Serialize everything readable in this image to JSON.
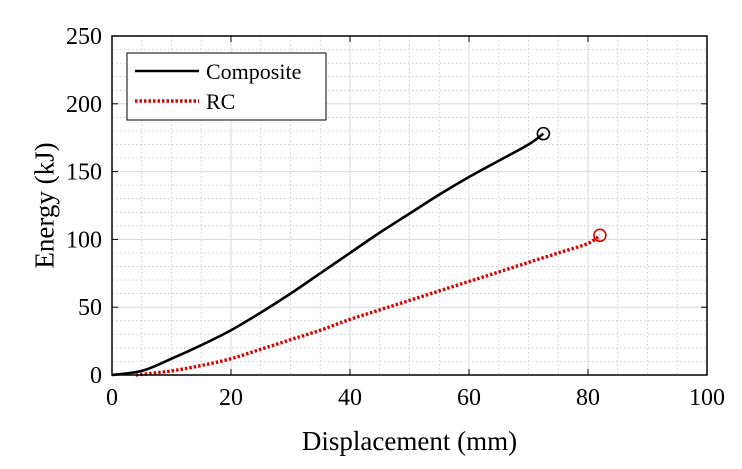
{
  "chart_data": {
    "type": "line",
    "title": "",
    "xlabel": "Displacement (mm)",
    "ylabel": "Energy (kJ)",
    "xlim": [
      0,
      100
    ],
    "ylim": [
      0,
      250
    ],
    "xticks": [
      0,
      20,
      40,
      60,
      80,
      100
    ],
    "yticks": [
      0,
      50,
      100,
      150,
      200,
      250
    ],
    "grid": true,
    "minor_grid": true,
    "legend_position": "top-left",
    "series": [
      {
        "name": "Composite",
        "color": "#000000",
        "style": "solid",
        "end_marker": "circle",
        "x": [
          0,
          5,
          10,
          15,
          20,
          25,
          30,
          35,
          40,
          45,
          50,
          55,
          60,
          65,
          70,
          72.5
        ],
        "y": [
          0,
          3,
          12,
          22,
          33,
          46,
          60,
          75,
          90,
          105,
          119,
          133,
          146,
          158,
          170,
          178
        ]
      },
      {
        "name": "RC",
        "color": "#dd0000",
        "style": "dotted",
        "end_marker": "circle",
        "x": [
          4,
          10,
          15,
          20,
          25,
          30,
          35,
          40,
          45,
          50,
          55,
          60,
          65,
          70,
          75,
          80,
          82
        ],
        "y": [
          0,
          3,
          7,
          12,
          19,
          26,
          33,
          41,
          48,
          55,
          62,
          69,
          76,
          83,
          90,
          97,
          103
        ]
      }
    ]
  }
}
